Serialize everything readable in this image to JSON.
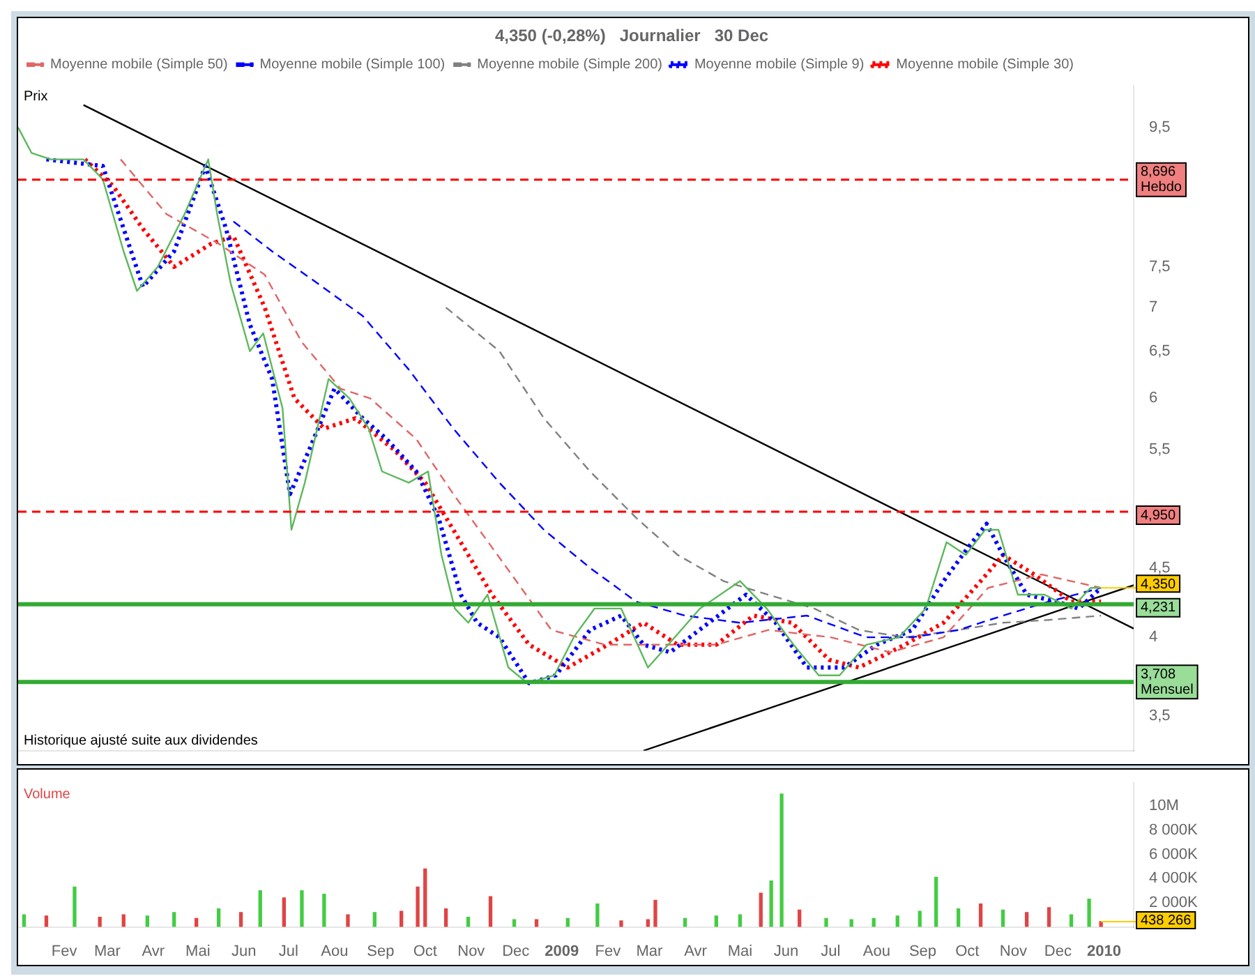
{
  "chart_data": [
    {
      "type": "line",
      "title": "4,350 (-0,28%)   Journalier   30 Dec",
      "ylabel": "Prix",
      "log": true,
      "legend": "top",
      "marker": "none",
      "xlim": [
        "2008-01-01",
        "2010-01-21"
      ],
      "ylim": [
        3.3,
        10.2
      ],
      "yticks": [
        {
          "value": 3.5,
          "label": "3,5"
        },
        4,
        {
          "value": 4.5,
          "label": "4,5"
        },
        {
          "value": 5.5,
          "label": "5,5"
        },
        6,
        {
          "value": 6.5,
          "label": "6,5"
        },
        7,
        {
          "value": 7.5,
          "label": "7,5"
        },
        {
          "value": 9.5,
          "label": "9,5"
        }
      ],
      "tick_labels": "y",
      "series": [
        {
          "color": "#5cb85c",
          "line_style": "solid",
          "x": [
            "2008-01-01",
            "2008-01-10",
            "2008-01-23",
            "2008-02-14",
            "2008-02-27",
            "2008-03-12",
            "2008-03-21",
            "2008-04-04",
            "2008-04-22",
            "2008-05-08",
            "2008-05-14",
            "2008-05-23",
            "2008-06-05",
            "2008-06-14",
            "2008-06-27",
            "2008-07-03",
            "2008-07-12",
            "2008-07-28",
            "2008-08-11",
            "2008-08-24",
            "2008-09-02",
            "2008-09-20",
            "2008-10-03",
            "2008-10-12",
            "2008-10-21",
            "2008-10-30",
            "2008-11-12",
            "2008-11-26",
            "2008-12-09",
            "2008-12-27",
            "2009-01-09",
            "2009-01-23",
            "2009-02-10",
            "2009-02-28",
            "2009-03-18",
            "2009-04-04",
            "2009-05-01",
            "2009-05-19",
            "2009-06-06",
            "2009-06-23",
            "2009-07-07",
            "2009-07-25",
            "2009-08-16",
            "2009-09-03",
            "2009-09-17",
            "2009-09-30",
            "2009-10-13",
            "2009-10-22",
            "2009-11-04",
            "2009-11-22",
            "2009-12-10",
            "2009-12-23",
            "2009-12-30"
          ],
          "values": [
            9.5,
            9.1,
            9.0,
            9.0,
            8.7,
            7.7,
            7.2,
            7.5,
            8.2,
            9.0,
            8.2,
            7.3,
            6.5,
            6.7,
            5.9,
            4.8,
            5.2,
            6.2,
            6.0,
            5.7,
            5.3,
            5.2,
            5.3,
            4.6,
            4.2,
            4.1,
            4.3,
            3.8,
            3.7,
            3.75,
            4.0,
            4.2,
            4.2,
            3.8,
            4.0,
            4.2,
            4.4,
            4.2,
            3.95,
            3.75,
            3.75,
            3.95,
            4.0,
            4.2,
            4.7,
            4.6,
            4.8,
            4.8,
            4.3,
            4.3,
            4.2,
            4.35,
            4.35
          ]
        },
        {
          "name": "Moyenne mobile (Simple 50)",
          "color": "#e06666",
          "line_style": "dashed",
          "x": [
            "2008-03-10",
            "2008-04-10",
            "2008-05-15",
            "2008-06-15",
            "2008-07-10",
            "2008-08-05",
            "2008-08-25",
            "2008-09-25",
            "2008-10-20",
            "2008-11-25",
            "2008-12-25",
            "2009-01-30",
            "2009-03-01",
            "2009-04-15",
            "2009-05-20",
            "2009-07-01",
            "2009-08-10",
            "2009-09-15",
            "2009-10-15",
            "2009-11-20",
            "2009-12-30"
          ],
          "values": [
            9.0,
            8.2,
            7.8,
            7.4,
            6.6,
            6.1,
            6.0,
            5.6,
            5.1,
            4.5,
            4.05,
            3.95,
            3.95,
            3.95,
            4.05,
            4.0,
            3.9,
            4.0,
            4.35,
            4.45,
            4.35
          ]
        },
        {
          "name": "Moyenne mobile (Simple 100)",
          "color": "#0000ff",
          "line_style": "dashed",
          "x": [
            "2008-05-25",
            "2008-06-20",
            "2008-07-20",
            "2008-08-20",
            "2008-09-20",
            "2008-10-20",
            "2008-11-20",
            "2008-12-20",
            "2009-01-20",
            "2009-02-20",
            "2009-03-25",
            "2009-05-01",
            "2009-06-15",
            "2009-07-25",
            "2009-08-25",
            "2009-09-25",
            "2009-10-25",
            "2009-11-25",
            "2009-12-30"
          ],
          "values": [
            8.1,
            7.7,
            7.3,
            6.9,
            6.3,
            5.7,
            5.2,
            4.8,
            4.5,
            4.25,
            4.15,
            4.1,
            4.15,
            4.0,
            4.0,
            4.05,
            4.15,
            4.25,
            4.35
          ]
        },
        {
          "name": "Moyenne mobile (Simple 200)",
          "color": "#808080",
          "line_style": "dashed",
          "x": [
            "2008-10-15",
            "2008-11-20",
            "2008-12-20",
            "2009-01-20",
            "2009-02-20",
            "2009-03-20",
            "2009-04-20",
            "2009-05-20",
            "2009-06-20",
            "2009-07-20",
            "2009-08-20",
            "2009-09-25",
            "2009-10-25",
            "2009-11-25",
            "2009-12-30"
          ],
          "values": [
            7.0,
            6.5,
            5.8,
            5.3,
            4.9,
            4.6,
            4.4,
            4.3,
            4.2,
            4.05,
            4.0,
            4.05,
            4.1,
            4.12,
            4.15
          ]
        },
        {
          "name": "Moyenne mobile (Simple 9)",
          "color": "#0000ff",
          "line_style": "dotted",
          "x": [
            "2008-01-20",
            "2008-02-27",
            "2008-03-25",
            "2008-04-15",
            "2008-05-06",
            "2008-05-20",
            "2008-06-05",
            "2008-06-20",
            "2008-07-02",
            "2008-07-15",
            "2008-08-01",
            "2008-08-20",
            "2008-09-05",
            "2008-09-25",
            "2008-10-10",
            "2008-10-25",
            "2008-11-05",
            "2008-11-20",
            "2008-12-10",
            "2008-12-28",
            "2009-01-20",
            "2009-02-10",
            "2009-02-25",
            "2009-03-15",
            "2009-04-10",
            "2009-05-05",
            "2009-05-25",
            "2009-06-15",
            "2009-07-10",
            "2009-08-01",
            "2009-08-25",
            "2009-09-15",
            "2009-10-01",
            "2009-10-14",
            "2009-10-25",
            "2009-11-10",
            "2009-11-30",
            "2009-12-15",
            "2009-12-30"
          ],
          "values": [
            9.0,
            8.9,
            7.25,
            7.7,
            8.9,
            8.0,
            6.8,
            6.2,
            5.1,
            5.5,
            6.1,
            5.8,
            5.6,
            5.3,
            4.9,
            4.3,
            4.1,
            4.0,
            3.7,
            3.75,
            4.05,
            4.15,
            3.95,
            3.9,
            4.1,
            4.3,
            4.1,
            3.8,
            3.8,
            3.95,
            4.05,
            4.4,
            4.65,
            4.85,
            4.6,
            4.3,
            4.25,
            4.2,
            4.35
          ]
        },
        {
          "name": "Moyenne mobile (Simple 30)",
          "color": "#ff0000",
          "line_style": "dotted",
          "x": [
            "2008-02-15",
            "2008-03-05",
            "2008-03-25",
            "2008-04-15",
            "2008-05-10",
            "2008-05-25",
            "2008-06-15",
            "2008-07-05",
            "2008-07-25",
            "2008-08-15",
            "2008-09-10",
            "2008-10-01",
            "2008-10-20",
            "2008-11-15",
            "2008-12-10",
            "2009-01-05",
            "2009-02-01",
            "2009-02-25",
            "2009-03-20",
            "2009-04-15",
            "2009-05-10",
            "2009-06-05",
            "2009-06-30",
            "2009-07-20",
            "2009-08-20",
            "2009-09-15",
            "2009-10-10",
            "2009-10-25",
            "2009-11-15",
            "2009-12-10",
            "2009-12-30"
          ],
          "values": [
            9.0,
            8.6,
            8.0,
            7.5,
            7.8,
            7.9,
            7.0,
            6.0,
            5.7,
            5.8,
            5.5,
            5.2,
            4.8,
            4.3,
            3.95,
            3.8,
            3.95,
            4.1,
            3.95,
            3.95,
            4.15,
            4.1,
            3.85,
            3.8,
            3.95,
            4.1,
            4.4,
            4.6,
            4.45,
            4.25,
            4.25
          ]
        },
        {
          "color": "#000000",
          "line_style": "solid",
          "x": [
            "2008-02-14",
            "2010-01-21"
          ],
          "values": [
            9.87,
            4.06
          ]
        },
        {
          "color": "#000000",
          "line_style": "solid",
          "x": [
            "2009-02-25",
            "2010-01-21"
          ],
          "values": [
            3.3,
            4.37
          ]
        }
      ],
      "ref_lines": [
        {
          "axis": "y",
          "value": 8.696,
          "label": "8,696 Hebdo",
          "color": "#ff0000",
          "line_style": "dashed"
        },
        {
          "axis": "y",
          "value": 3.708,
          "label": "3,708 Mensuel",
          "color": "#33aa33",
          "line_style": "solid"
        },
        {
          "axis": "y",
          "value": 4.95,
          "label": "4,950",
          "color": "#ff0000",
          "line_style": "dashed"
        },
        {
          "axis": "y",
          "value": 4.231,
          "label": "4,231",
          "color": "#33aa33",
          "line_style": "solid"
        }
      ],
      "annotations": [
        "Historique ajusté suite aux dividendes",
        {
          "text": "4,350",
          "x": "2009-12-30",
          "y": 4.35
        }
      ]
    },
    {
      "type": "bar",
      "ylabel": "Volume",
      "xlim": [
        "2008-01-01",
        "2010-01-21"
      ],
      "ylim": [
        0,
        11900000
      ],
      "tick_labels": "xy",
      "yticks": [
        {
          "value": 2000000,
          "label": "2 000K"
        },
        {
          "value": 4000000,
          "label": "4 000K"
        },
        {
          "value": 6000000,
          "label": "6 000K"
        },
        {
          "value": 8000000,
          "label": "8 000K"
        },
        {
          "value": 10000000,
          "label": "10M"
        }
      ],
      "xticks": [
        {
          "value": "2008-02-01",
          "label": "Fev"
        },
        {
          "value": "2008-03-01",
          "label": "Mar"
        },
        {
          "value": "2008-04-01",
          "label": "Avr"
        },
        {
          "value": "2008-05-01",
          "label": "Mai"
        },
        {
          "value": "2008-06-01",
          "label": "Jun"
        },
        {
          "value": "2008-07-01",
          "label": "Jul"
        },
        {
          "value": "2008-08-01",
          "label": "Aou"
        },
        {
          "value": "2008-09-01",
          "label": "Sep"
        },
        {
          "value": "2008-10-01",
          "label": "Oct"
        },
        {
          "value": "2008-11-01",
          "label": "Nov"
        },
        {
          "value": "2008-12-01",
          "label": "Dec"
        },
        {
          "value": "2009-01-01",
          "label": "2009"
        },
        {
          "value": "2009-02-01",
          "label": "Fev"
        },
        {
          "value": "2009-03-01",
          "label": "Mar"
        },
        {
          "value": "2009-04-01",
          "label": "Avr"
        },
        {
          "value": "2009-05-01",
          "label": "Mai"
        },
        {
          "value": "2009-06-01",
          "label": "Jun"
        },
        {
          "value": "2009-07-01",
          "label": "Jul"
        },
        {
          "value": "2009-08-01",
          "label": "Aou"
        },
        {
          "value": "2009-09-01",
          "label": "Sep"
        },
        {
          "value": "2009-10-01",
          "label": "Oct"
        },
        {
          "value": "2009-11-01",
          "label": "Nov"
        },
        {
          "value": "2009-12-01",
          "label": "Dec"
        },
        {
          "value": "2010-01-01",
          "label": "2010"
        }
      ],
      "x": [
        "2008-01-05",
        "2008-01-20",
        "2008-02-08",
        "2008-02-25",
        "2008-03-12",
        "2008-03-28",
        "2008-04-15",
        "2008-04-30",
        "2008-05-15",
        "2008-05-30",
        "2008-06-12",
        "2008-06-28",
        "2008-07-10",
        "2008-07-25",
        "2008-08-10",
        "2008-08-28",
        "2008-09-15",
        "2008-09-26",
        "2008-10-01",
        "2008-10-15",
        "2008-10-30",
        "2008-11-14",
        "2008-11-30",
        "2008-12-15",
        "2009-01-05",
        "2009-01-25",
        "2009-02-10",
        "2009-02-28",
        "2009-03-05",
        "2009-03-25",
        "2009-04-15",
        "2009-05-01",
        "2009-05-15",
        "2009-05-22",
        "2009-05-29",
        "2009-06-10",
        "2009-06-28",
        "2009-07-15",
        "2009-07-30",
        "2009-08-15",
        "2009-08-30",
        "2009-09-10",
        "2009-09-25",
        "2009-10-10",
        "2009-10-25",
        "2009-11-10",
        "2009-11-25",
        "2009-12-10",
        "2009-12-22",
        "2009-12-30"
      ],
      "series": [
        {
          "colors": [
            "#44cc44",
            "#e04444",
            "#44cc44",
            "#e04444",
            "#e04444",
            "#44cc44",
            "#44cc44",
            "#e04444",
            "#44cc44",
            "#e04444",
            "#44cc44",
            "#e04444",
            "#44cc44",
            "#44cc44",
            "#e04444",
            "#44cc44",
            "#e04444",
            "#e04444",
            "#e04444",
            "#e04444",
            "#44cc44",
            "#e04444",
            "#44cc44",
            "#e04444",
            "#44cc44",
            "#44cc44",
            "#e04444",
            "#e04444",
            "#e04444",
            "#44cc44",
            "#44cc44",
            "#44cc44",
            "#e04444",
            "#44cc44",
            "#44cc44",
            "#e04444",
            "#44cc44",
            "#44cc44",
            "#44cc44",
            "#44cc44",
            "#44cc44",
            "#44cc44",
            "#44cc44",
            "#e04444",
            "#44cc44",
            "#e04444",
            "#e04444",
            "#44cc44",
            "#44cc44",
            "#e04444"
          ],
          "values": [
            1000000,
            900000,
            3300000,
            800000,
            1000000,
            900000,
            1200000,
            700000,
            1500000,
            1200000,
            3000000,
            2400000,
            3000000,
            2700000,
            1000000,
            1200000,
            1300000,
            3300000,
            4800000,
            1500000,
            800000,
            2500000,
            600000,
            600000,
            700000,
            1900000,
            500000,
            600000,
            2200000,
            700000,
            900000,
            1000000,
            2800000,
            3800000,
            11000000,
            1400000,
            700000,
            600000,
            700000,
            900000,
            1300000,
            4100000,
            1500000,
            1900000,
            1400000,
            1200000,
            1600000,
            1000000,
            2300000,
            438266
          ]
        }
      ],
      "annotations": [
        {
          "text": "438 266",
          "x": "2009-12-30",
          "y": 438266
        }
      ]
    }
  ]
}
